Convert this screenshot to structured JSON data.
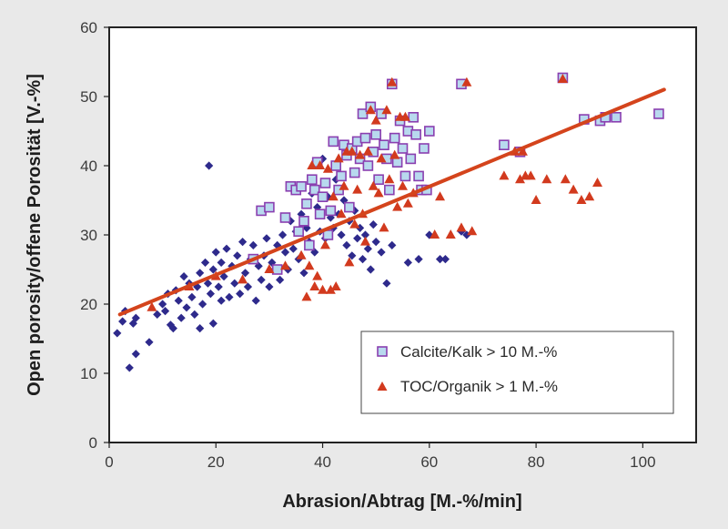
{
  "chart_data": {
    "type": "scatter",
    "xlabel": "Abrasion/Abtrag [M.-%/min]",
    "ylabel": "Open porosity/offene Porosität [V.-%]",
    "xlim": [
      0,
      110
    ],
    "ylim": [
      0,
      60
    ],
    "xticks": [
      0,
      20,
      40,
      60,
      80,
      100
    ],
    "yticks": [
      0,
      10,
      20,
      30,
      40,
      50,
      60
    ],
    "grid": false,
    "legend_position": "bottom-right",
    "series": [
      {
        "color": "#2e2a8c",
        "marker": "diamond",
        "points": [
          [
            1.5,
            15.8
          ],
          [
            2.5,
            17.5
          ],
          [
            3,
            19
          ],
          [
            3.8,
            10.8
          ],
          [
            4.5,
            17.2
          ],
          [
            5,
            12.8
          ],
          [
            5,
            18
          ],
          [
            7.5,
            14.5
          ],
          [
            9,
            18.5
          ],
          [
            10,
            20
          ],
          [
            10.5,
            19
          ],
          [
            11,
            21.5
          ],
          [
            11.5,
            17
          ],
          [
            12,
            16.5
          ],
          [
            12.5,
            22
          ],
          [
            13,
            20.5
          ],
          [
            13.5,
            18
          ],
          [
            14,
            24
          ],
          [
            14.5,
            19.5
          ],
          [
            15,
            23
          ],
          [
            15.5,
            21
          ],
          [
            16,
            18.5
          ],
          [
            16.5,
            22.5
          ],
          [
            17,
            24.5
          ],
          [
            17,
            16.5
          ],
          [
            17.5,
            20
          ],
          [
            18,
            26
          ],
          [
            18.5,
            23
          ],
          [
            18.7,
            40
          ],
          [
            19,
            21.5
          ],
          [
            19.5,
            25
          ],
          [
            19.5,
            17.2
          ],
          [
            20,
            27.5
          ],
          [
            20.5,
            22.5
          ],
          [
            21,
            26
          ],
          [
            21,
            20.5
          ],
          [
            21.5,
            24
          ],
          [
            22,
            28
          ],
          [
            22.5,
            21
          ],
          [
            23,
            25.5
          ],
          [
            23.5,
            23
          ],
          [
            24,
            27
          ],
          [
            24.5,
            21.5
          ],
          [
            25,
            29
          ],
          [
            25.5,
            24.5
          ],
          [
            26,
            22.5
          ],
          [
            26.5,
            26.5
          ],
          [
            27,
            28.5
          ],
          [
            27.5,
            20.5
          ],
          [
            28,
            25.5
          ],
          [
            28.5,
            23.5
          ],
          [
            29,
            27
          ],
          [
            29.5,
            29.5
          ],
          [
            30,
            22.5
          ],
          [
            30.5,
            26
          ],
          [
            31,
            25
          ],
          [
            31.5,
            28.5
          ],
          [
            32,
            23.5
          ],
          [
            32.5,
            30
          ],
          [
            33,
            27.5
          ],
          [
            33.5,
            25
          ],
          [
            34,
            32
          ],
          [
            34.5,
            28
          ],
          [
            35,
            30.5
          ],
          [
            35.5,
            26.5
          ],
          [
            36,
            33
          ],
          [
            36.5,
            24.5
          ],
          [
            37,
            31
          ],
          [
            37.5,
            29
          ],
          [
            38,
            36
          ],
          [
            38.5,
            27.5
          ],
          [
            39,
            34
          ],
          [
            39.5,
            30.5
          ],
          [
            40,
            41
          ],
          [
            40.5,
            29.5
          ],
          [
            41,
            35.5
          ],
          [
            41.5,
            32.5
          ],
          [
            42,
            31
          ],
          [
            42.5,
            38
          ],
          [
            43,
            33
          ],
          [
            43.5,
            30
          ],
          [
            44,
            35
          ],
          [
            44.5,
            28.5
          ],
          [
            45,
            32
          ],
          [
            45.5,
            27
          ],
          [
            46,
            33.5
          ],
          [
            46.5,
            29.5
          ],
          [
            47,
            31
          ],
          [
            47.5,
            26.5
          ],
          [
            48,
            30
          ],
          [
            48.5,
            28
          ],
          [
            49,
            25
          ],
          [
            49.5,
            31.5
          ],
          [
            50,
            29
          ],
          [
            51,
            27.5
          ],
          [
            52,
            23
          ],
          [
            53,
            28.5
          ],
          [
            56,
            26
          ],
          [
            58,
            26.5
          ],
          [
            60,
            30
          ],
          [
            62,
            26.5
          ],
          [
            63,
            26.5
          ],
          [
            66,
            30.5
          ],
          [
            67,
            30
          ]
        ]
      },
      {
        "name": "Calcite/Kalk > 10 M.-%",
        "color": "#8a3fb0",
        "fill": "#b8d9ee",
        "marker": "square",
        "points": [
          [
            27,
            26.5
          ],
          [
            28.5,
            33.5
          ],
          [
            30,
            34
          ],
          [
            31.5,
            25
          ],
          [
            33,
            32.5
          ],
          [
            34,
            37
          ],
          [
            35,
            36.5
          ],
          [
            35.5,
            30.5
          ],
          [
            36,
            37
          ],
          [
            36.5,
            32
          ],
          [
            37,
            34.5
          ],
          [
            37.5,
            28.5
          ],
          [
            38,
            38
          ],
          [
            38.5,
            36.5
          ],
          [
            39,
            40.5
          ],
          [
            39.5,
            33
          ],
          [
            40,
            35.5
          ],
          [
            40.5,
            37.5
          ],
          [
            41,
            30
          ],
          [
            41.5,
            33.5
          ],
          [
            42,
            43.5
          ],
          [
            42.5,
            40
          ],
          [
            43,
            36.5
          ],
          [
            43.5,
            38.5
          ],
          [
            44,
            43
          ],
          [
            44.5,
            41.5
          ],
          [
            45,
            34
          ],
          [
            45.5,
            42.5
          ],
          [
            46,
            39
          ],
          [
            46.5,
            43.5
          ],
          [
            47,
            41
          ],
          [
            47.5,
            47.5
          ],
          [
            48,
            44
          ],
          [
            48.5,
            40
          ],
          [
            49,
            48.5
          ],
          [
            49.5,
            42
          ],
          [
            50,
            44.5
          ],
          [
            50.5,
            38
          ],
          [
            51,
            47.5
          ],
          [
            51.5,
            43
          ],
          [
            52,
            41
          ],
          [
            52.5,
            36.5
          ],
          [
            53,
            51.8
          ],
          [
            53.5,
            44
          ],
          [
            54,
            40.5
          ],
          [
            54.5,
            46.5
          ],
          [
            55,
            42.5
          ],
          [
            55.5,
            38.5
          ],
          [
            56,
            45
          ],
          [
            56.5,
            41
          ],
          [
            57,
            47
          ],
          [
            57.5,
            44.5
          ],
          [
            58,
            38.5
          ],
          [
            58.5,
            36.5
          ],
          [
            59,
            42.5
          ],
          [
            59.5,
            36.5
          ],
          [
            60,
            45
          ],
          [
            66,
            51.8
          ],
          [
            74,
            43
          ],
          [
            77,
            42
          ],
          [
            85,
            52.7
          ],
          [
            89,
            46.7
          ],
          [
            92,
            46.5
          ],
          [
            93,
            47
          ],
          [
            95,
            47
          ],
          [
            103,
            47.5
          ]
        ]
      },
      {
        "name": "TOC/Organik > 1 M.-%",
        "color": "#d23a1e",
        "marker": "triangle",
        "points": [
          [
            8,
            19.5
          ],
          [
            15,
            22.5
          ],
          [
            20,
            24
          ],
          [
            25,
            23.5
          ],
          [
            30,
            25
          ],
          [
            33,
            25.5
          ],
          [
            36,
            27
          ],
          [
            37,
            21
          ],
          [
            37.5,
            25.5
          ],
          [
            38,
            40
          ],
          [
            38.5,
            22.5
          ],
          [
            39,
            24
          ],
          [
            39.5,
            40
          ],
          [
            40,
            22
          ],
          [
            40.5,
            28.5
          ],
          [
            41,
            39.5
          ],
          [
            41.5,
            22
          ],
          [
            42,
            35.5
          ],
          [
            42.5,
            22.5
          ],
          [
            43,
            41
          ],
          [
            43.5,
            33
          ],
          [
            44,
            37
          ],
          [
            44.5,
            42
          ],
          [
            45,
            26
          ],
          [
            45.5,
            42
          ],
          [
            46,
            31.5
          ],
          [
            46.5,
            36.5
          ],
          [
            47,
            41.5
          ],
          [
            47.5,
            33
          ],
          [
            48,
            29
          ],
          [
            48.5,
            42
          ],
          [
            49,
            48
          ],
          [
            49.5,
            37
          ],
          [
            50,
            46.5
          ],
          [
            50.5,
            36
          ],
          [
            51,
            41
          ],
          [
            51.5,
            31
          ],
          [
            52,
            48
          ],
          [
            52.5,
            38
          ],
          [
            53,
            52
          ],
          [
            53.5,
            41.5
          ],
          [
            54,
            34
          ],
          [
            54.5,
            47
          ],
          [
            55,
            37
          ],
          [
            55.5,
            47
          ],
          [
            56,
            34.5
          ],
          [
            57,
            36
          ],
          [
            61,
            30
          ],
          [
            62,
            35.5
          ],
          [
            64,
            30
          ],
          [
            66,
            31
          ],
          [
            67,
            52
          ],
          [
            68,
            30.5
          ],
          [
            74,
            38.5
          ],
          [
            76,
            42
          ],
          [
            77,
            38
          ],
          [
            77.5,
            42
          ],
          [
            78,
            38.5
          ],
          [
            79,
            38.5
          ],
          [
            80,
            35
          ],
          [
            82,
            38
          ],
          [
            85,
            52.5
          ],
          [
            85.5,
            38
          ],
          [
            87,
            36.5
          ],
          [
            88.5,
            35
          ],
          [
            90,
            35.5
          ],
          [
            91.5,
            37.5
          ]
        ]
      }
    ],
    "trendline": {
      "color": "#d4441c",
      "x": [
        2,
        104
      ],
      "y": [
        18.5,
        51
      ]
    },
    "legend": [
      {
        "label": "Calcite/Kalk > 10 M.-%",
        "marker": "square"
      },
      {
        "label": "TOC/Organik > 1 M.-%",
        "marker": "triangle"
      }
    ]
  }
}
